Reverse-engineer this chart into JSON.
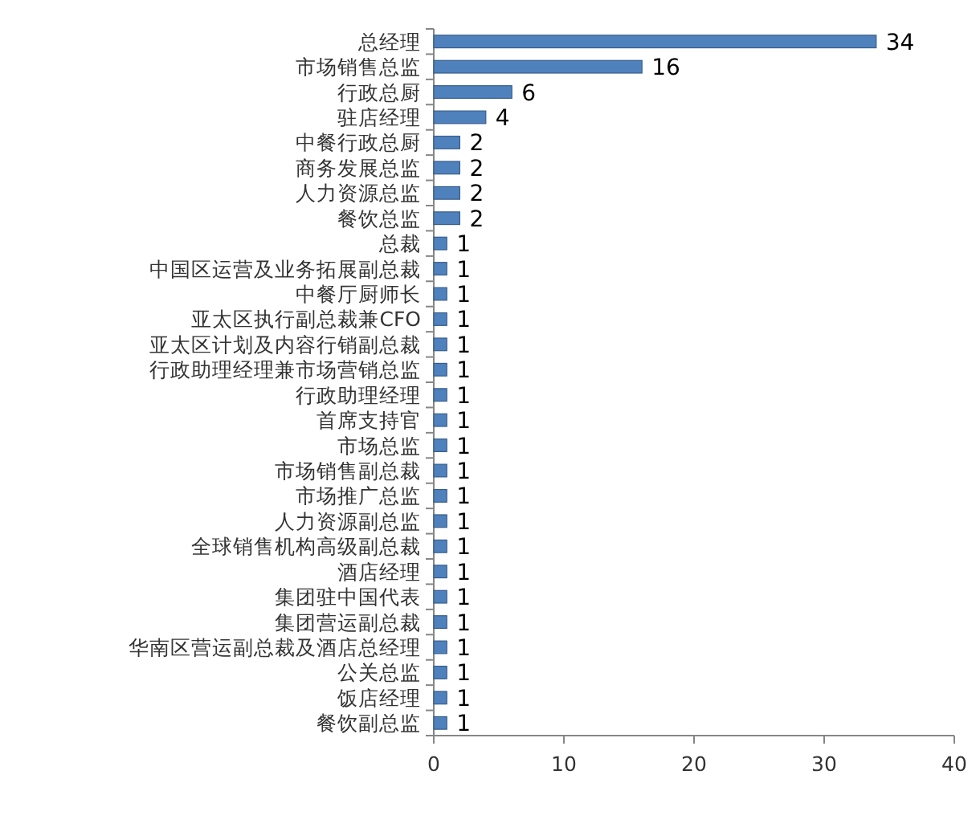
{
  "chart_data": {
    "type": "bar",
    "orientation": "horizontal",
    "categories": [
      "总经理",
      "市场销售总监",
      "行政总厨",
      "驻店经理",
      "中餐行政总厨",
      "商务发展总监",
      "人力资源总监",
      "餐饮总监",
      "总裁",
      "中国区运营及业务拓展副总裁",
      "中餐厅厨师长",
      "亚太区执行副总裁兼CFO",
      "亚太区计划及内容行销副总裁",
      "行政助理经理兼市场营销总监",
      "行政助理经理",
      "首席支持官",
      "市场总监",
      "市场销售副总裁",
      "市场推广总监",
      "人力资源副总监",
      "全球销售机构高级副总裁",
      "酒店经理",
      "集团驻中国代表",
      "集团营运副总裁",
      "华南区营运副总裁及酒店总经理",
      "公关总监",
      "饭店经理",
      "餐饮副总监"
    ],
    "values": [
      34,
      16,
      6,
      4,
      2,
      2,
      2,
      2,
      1,
      1,
      1,
      1,
      1,
      1,
      1,
      1,
      1,
      1,
      1,
      1,
      1,
      1,
      1,
      1,
      1,
      1,
      1,
      1
    ],
    "color": "#4f81bd",
    "data_labels": true,
    "xlim": [
      0,
      40
    ],
    "xticks": [
      0,
      10,
      20,
      30,
      40
    ],
    "grid": false
  }
}
